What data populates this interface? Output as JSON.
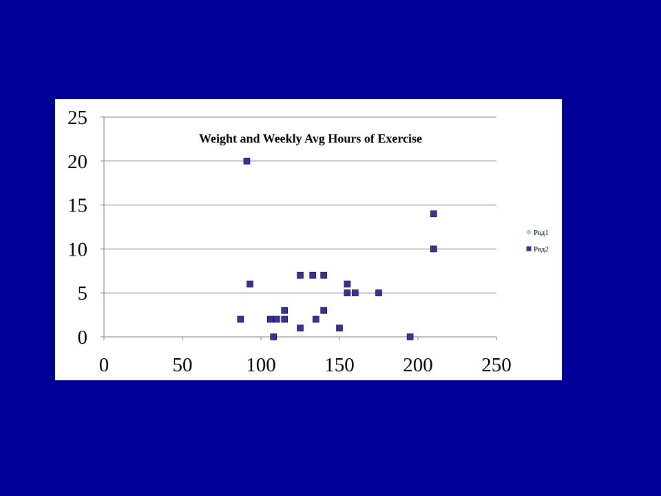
{
  "chart_data": {
    "type": "scatter",
    "title": "Weight and Weekly Avg Hours of Exercise",
    "xlabel": "",
    "ylabel": "",
    "xlim": [
      0,
      250
    ],
    "ylim": [
      0,
      25
    ],
    "x_ticks": [
      "0",
      "50",
      "100",
      "150",
      "200",
      "250"
    ],
    "y_ticks": [
      "0",
      "5",
      "10",
      "15",
      "20",
      "25"
    ],
    "grid": "horizontal",
    "legend_position": "right",
    "series": [
      {
        "name": "Ряд1",
        "marker": "diamond",
        "color": "#99CCFF",
        "points": []
      },
      {
        "name": "Ряд2",
        "marker": "square",
        "color": "#333399",
        "points": [
          [
            87,
            2
          ],
          [
            91,
            20
          ],
          [
            93,
            6
          ],
          [
            106,
            2
          ],
          [
            108,
            0
          ],
          [
            110,
            2
          ],
          [
            115,
            2
          ],
          [
            115,
            3
          ],
          [
            125,
            7
          ],
          [
            125,
            1
          ],
          [
            133,
            7
          ],
          [
            135,
            2
          ],
          [
            140,
            7
          ],
          [
            140,
            3
          ],
          [
            150,
            1
          ],
          [
            155,
            6
          ],
          [
            155,
            5
          ],
          [
            160,
            5
          ],
          [
            175,
            5
          ],
          [
            195,
            0
          ],
          [
            210,
            14
          ],
          [
            210,
            10
          ]
        ]
      }
    ]
  },
  "colors": {
    "slide_background": "#000099",
    "panel_background": "#FFFFFF",
    "gridline": "#808080"
  }
}
